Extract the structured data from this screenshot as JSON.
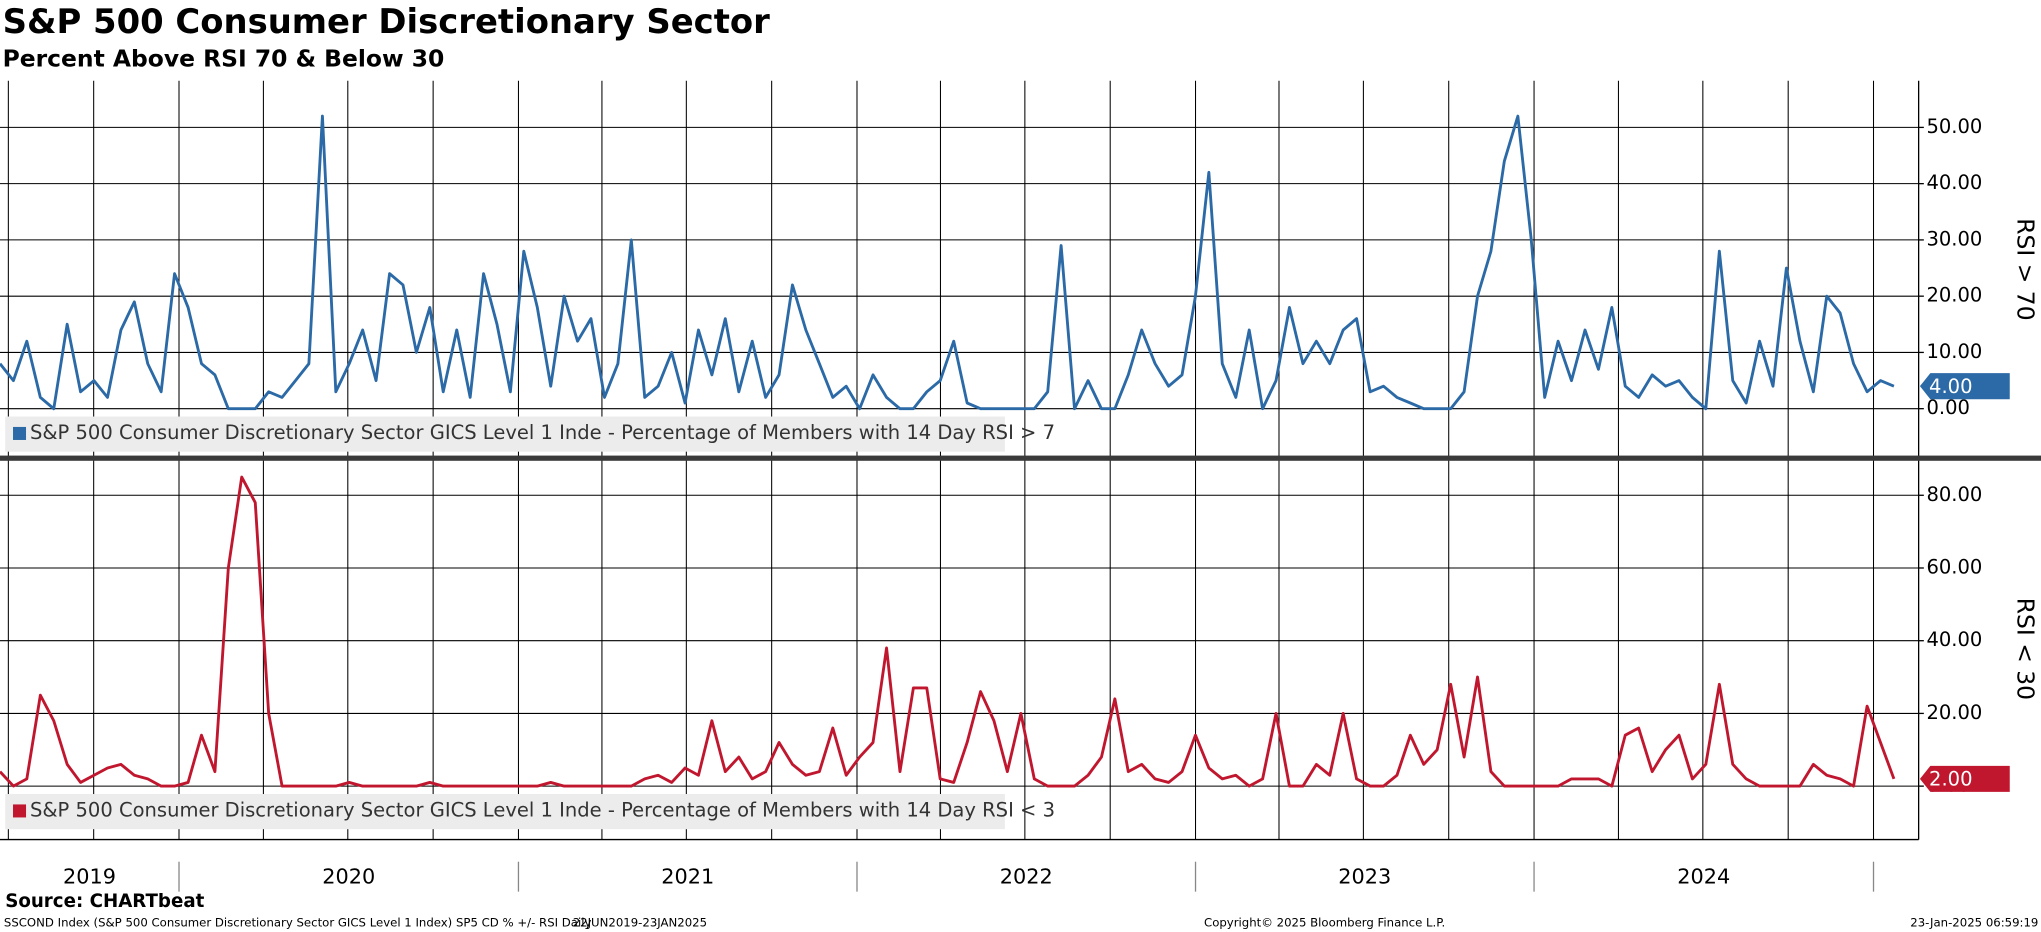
{
  "header": {
    "title": "S&P 500 Consumer Discretionary Sector",
    "subtitle": "Percent Above RSI 70 & Below 30"
  },
  "x_axis": {
    "categories": [
      "2019",
      "2020",
      "2021",
      "2022",
      "2023",
      "2024"
    ]
  },
  "chart_data": [
    {
      "type": "line",
      "ylabel": "RSI > 70",
      "ylim": [
        -8.8,
        58.3
      ],
      "yticks": [
        {
          "value": 0,
          "label": "0.00"
        },
        {
          "value": 10,
          "label": "10.00"
        },
        {
          "value": 20,
          "label": "20.00"
        },
        {
          "value": 30,
          "label": "30.00"
        },
        {
          "value": 40,
          "label": "40.00"
        },
        {
          "value": 50,
          "label": "50.00"
        }
      ],
      "series": [
        {
          "name": "S&P 500 Consumer Discretionary Sector GICS Level 1 Inde - Percentage of Members with 14 Day RSI > 7",
          "color": "#2b6aa6",
          "values": [
            8,
            5,
            12,
            2,
            0,
            15,
            3,
            5,
            2,
            14,
            19,
            8,
            3,
            24,
            18,
            8,
            6,
            0,
            0,
            0,
            3,
            2,
            5,
            8,
            52,
            3,
            8,
            14,
            5,
            24,
            22,
            10,
            18,
            3,
            14,
            2,
            24,
            15,
            3,
            28,
            18,
            4,
            20,
            12,
            16,
            2,
            8,
            30,
            2,
            4,
            10,
            1,
            14,
            6,
            16,
            3,
            12,
            2,
            6,
            22,
            14,
            8,
            2,
            4,
            0,
            6,
            2,
            0,
            0,
            3,
            5,
            12,
            1,
            0,
            0,
            0,
            0,
            0,
            3,
            29,
            0,
            5,
            0,
            0,
            6,
            14,
            8,
            4,
            6,
            20,
            42,
            8,
            2,
            14,
            0,
            5,
            18,
            8,
            12,
            8,
            14,
            16,
            3,
            4,
            2,
            1,
            0,
            0,
            0,
            3,
            20,
            28,
            44,
            52,
            30,
            2,
            12,
            5,
            14,
            7,
            18,
            4,
            2,
            6,
            4,
            5,
            2,
            0,
            28,
            5,
            1,
            12,
            4,
            25,
            12,
            3,
            20,
            17,
            8,
            3,
            5,
            4
          ],
          "last_label": "4.00"
        }
      ]
    },
    {
      "type": "line",
      "ylabel": "RSI < 30",
      "ylim": [
        -14.7,
        90.2
      ],
      "yticks": [
        {
          "value": 0,
          "label": "0.00"
        },
        {
          "value": 20,
          "label": "20.00"
        },
        {
          "value": 40,
          "label": "40.00"
        },
        {
          "value": 60,
          "label": "60.00"
        },
        {
          "value": 80,
          "label": "80.00"
        }
      ],
      "series": [
        {
          "name": "S&P 500 Consumer Discretionary Sector GICS Level 1 Inde - Percentage of Members with 14 Day RSI < 3",
          "color": "#c0172f",
          "values": [
            4,
            0,
            2,
            25,
            18,
            6,
            1,
            3,
            5,
            6,
            3,
            2,
            0,
            0,
            1,
            14,
            4,
            60,
            85,
            78,
            20,
            0,
            0,
            0,
            0,
            0,
            1,
            0,
            0,
            0,
            0,
            0,
            1,
            0,
            0,
            0,
            0,
            0,
            0,
            0,
            0,
            1,
            0,
            0,
            0,
            0,
            0,
            0,
            2,
            3,
            1,
            5,
            3,
            18,
            4,
            8,
            2,
            4,
            12,
            6,
            3,
            4,
            16,
            3,
            8,
            12,
            38,
            4,
            27,
            27,
            2,
            1,
            12,
            26,
            18,
            4,
            20,
            2,
            0,
            0,
            0,
            3,
            8,
            24,
            4,
            6,
            2,
            1,
            4,
            14,
            5,
            2,
            3,
            0,
            2,
            20,
            0,
            0,
            6,
            3,
            20,
            2,
            0,
            0,
            3,
            14,
            6,
            10,
            28,
            8,
            30,
            4,
            0,
            0,
            0,
            0,
            0,
            2,
            2,
            2,
            0,
            14,
            16,
            4,
            10,
            14,
            2,
            6,
            28,
            6,
            2,
            0,
            0,
            0,
            0,
            6,
            3,
            2,
            0,
            22,
            12,
            2
          ],
          "last_label": "2.00"
        }
      ]
    }
  ],
  "footer": {
    "source": "Source: CHARTbeat",
    "desc": "SSCOND Index (S&P 500 Consumer Discretionary Sector GICS Level 1 Index) SP5 CD % +/- RSI  Daily",
    "range": "22JUN2019-23JAN2025",
    "copyright": "Copyright© 2025 Bloomberg Finance L.P.",
    "timestamp": "23-Jan-2025 06:59:19"
  }
}
